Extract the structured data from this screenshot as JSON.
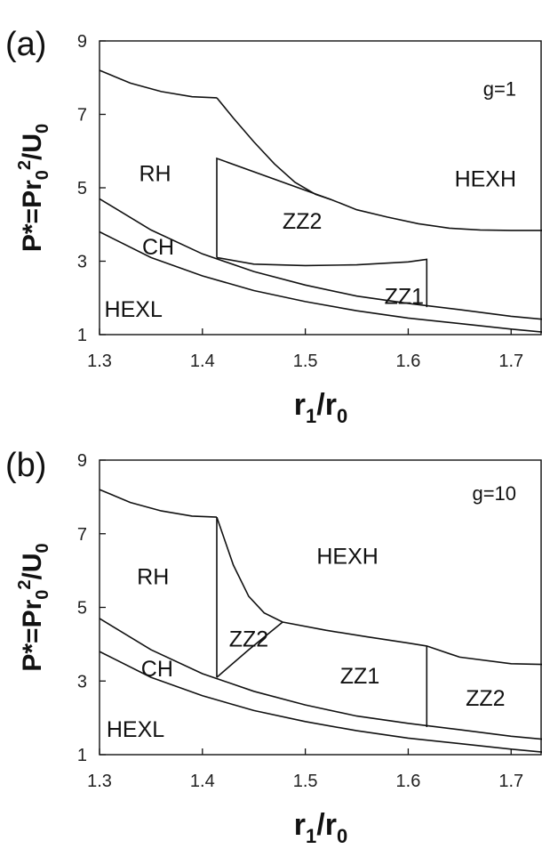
{
  "chart_data": [
    {
      "type": "line",
      "panel_label": "(a)",
      "parameter": "g=1",
      "xlabel": {
        "main": "r",
        "sub1": "1",
        "sep": "/r",
        "sub2": "0"
      },
      "ylabel": {
        "main": "P*=Pr",
        "sub1": "0",
        "sup": "2",
        "sep": "/U",
        "sub2": "0"
      },
      "xlim": [
        1.3,
        1.73
      ],
      "ylim": [
        1,
        9
      ],
      "xticks": [
        "1.3",
        "1.4",
        "1.5",
        "1.6",
        "1.7"
      ],
      "yticks": [
        "1",
        "3",
        "5",
        "7",
        "9"
      ],
      "regions": [
        {
          "label": "RH",
          "x": 1.354,
          "y": 5.4
        },
        {
          "label": "HEXH",
          "x": 1.675,
          "y": 5.25
        },
        {
          "label": "ZZ2",
          "x": 1.497,
          "y": 4.1
        },
        {
          "label": "CH",
          "x": 1.357,
          "y": 3.4
        },
        {
          "label": "ZZ1",
          "x": 1.596,
          "y": 2.05
        },
        {
          "label": "HEXL",
          "x": 1.333,
          "y": 1.7
        }
      ],
      "param_pos": {
        "x": 1.705,
        "y": 7.7
      },
      "series": [
        {
          "x": [
            1.3,
            1.33,
            1.36,
            1.39,
            1.414
          ],
          "y": [
            8.2,
            7.85,
            7.62,
            7.48,
            7.45
          ]
        },
        {
          "x": [
            1.414,
            1.43,
            1.45,
            1.47,
            1.49,
            1.51,
            1.525,
            1.55,
            1.58,
            1.61,
            1.64,
            1.67,
            1.7,
            1.73
          ],
          "y": [
            7.45,
            6.9,
            6.25,
            5.65,
            5.15,
            4.82,
            4.68,
            4.4,
            4.2,
            4.02,
            3.9,
            3.85,
            3.84,
            3.84
          ]
        },
        {
          "x": [
            1.414,
            1.414,
            1.525
          ],
          "y": [
            3.1,
            5.8,
            4.68
          ]
        },
        {
          "x": [
            1.414,
            1.45,
            1.5,
            1.55,
            1.6,
            1.618,
            1.618
          ],
          "y": [
            3.1,
            2.92,
            2.88,
            2.9,
            2.98,
            3.05,
            1.75
          ]
        },
        {
          "x": [
            1.3,
            1.35,
            1.4,
            1.45,
            1.5,
            1.55,
            1.6,
            1.65,
            1.7,
            1.73
          ],
          "y": [
            4.7,
            3.85,
            3.2,
            2.72,
            2.35,
            2.05,
            1.85,
            1.68,
            1.5,
            1.42
          ]
        },
        {
          "x": [
            1.3,
            1.35,
            1.4,
            1.45,
            1.5,
            1.55,
            1.6,
            1.65,
            1.7,
            1.73
          ],
          "y": [
            3.8,
            3.1,
            2.6,
            2.2,
            1.9,
            1.65,
            1.45,
            1.3,
            1.15,
            1.07
          ]
        }
      ]
    },
    {
      "type": "line",
      "panel_label": "(b)",
      "parameter": "g=10",
      "xlabel": {
        "main": "r",
        "sub1": "1",
        "sep": "/r",
        "sub2": "0"
      },
      "ylabel": {
        "main": "P*=Pr",
        "sub1": "0",
        "sup": "2",
        "sep": "/U",
        "sub2": "0"
      },
      "xlim": [
        1.3,
        1.73
      ],
      "ylim": [
        1,
        9
      ],
      "xticks": [
        "1.3",
        "1.4",
        "1.5",
        "1.6",
        "1.7"
      ],
      "yticks": [
        "1",
        "3",
        "5",
        "7",
        "9"
      ],
      "regions": [
        {
          "label": "RH",
          "x": 1.352,
          "y": 5.85
        },
        {
          "label": "HEXH",
          "x": 1.541,
          "y": 6.4
        },
        {
          "label": "ZZ2",
          "x": 1.445,
          "y": 4.15
        },
        {
          "label": "CH",
          "x": 1.356,
          "y": 3.35
        },
        {
          "label": "ZZ1",
          "x": 1.553,
          "y": 3.15
        },
        {
          "label": "ZZ2",
          "x": 1.675,
          "y": 2.55
        },
        {
          "label": "HEXL",
          "x": 1.335,
          "y": 1.7
        }
      ],
      "param_pos": {
        "x": 1.705,
        "y": 8.1
      },
      "series": [
        {
          "x": [
            1.3,
            1.33,
            1.36,
            1.39,
            1.414
          ],
          "y": [
            8.2,
            7.85,
            7.62,
            7.48,
            7.45
          ]
        },
        {
          "x": [
            1.414,
            1.414
          ],
          "y": [
            7.45,
            3.1
          ]
        },
        {
          "x": [
            1.414,
            1.43,
            1.445,
            1.46,
            1.478
          ],
          "y": [
            7.45,
            6.15,
            5.3,
            4.85,
            4.6
          ]
        },
        {
          "x": [
            1.414,
            1.445,
            1.478
          ],
          "y": [
            3.1,
            3.85,
            4.6
          ]
        },
        {
          "x": [
            1.478,
            1.52,
            1.56,
            1.6,
            1.618,
            1.65,
            1.7,
            1.73
          ],
          "y": [
            4.6,
            4.38,
            4.2,
            4.03,
            3.95,
            3.65,
            3.47,
            3.45
          ]
        },
        {
          "x": [
            1.618,
            1.618
          ],
          "y": [
            3.95,
            1.75
          ]
        },
        {
          "x": [
            1.3,
            1.35,
            1.4,
            1.45,
            1.5,
            1.55,
            1.6,
            1.65,
            1.7,
            1.73
          ],
          "y": [
            4.7,
            3.85,
            3.2,
            2.72,
            2.35,
            2.05,
            1.85,
            1.68,
            1.5,
            1.42
          ]
        },
        {
          "x": [
            1.3,
            1.35,
            1.4,
            1.45,
            1.5,
            1.55,
            1.6,
            1.65,
            1.7,
            1.73
          ],
          "y": [
            3.8,
            3.1,
            2.6,
            2.2,
            1.9,
            1.65,
            1.45,
            1.3,
            1.15,
            1.07
          ]
        }
      ]
    }
  ]
}
